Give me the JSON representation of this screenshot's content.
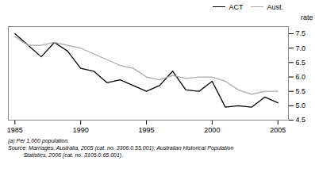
{
  "chart_data": {
    "type": "line",
    "x": [
      1985,
      1986,
      1987,
      1988,
      1989,
      1990,
      1991,
      1992,
      1993,
      1994,
      1995,
      1996,
      1997,
      1998,
      1999,
      2000,
      2001,
      2002,
      2003,
      2004,
      2005
    ],
    "series": [
      {
        "name": "ACT",
        "color": "#000000",
        "values": [
          7.5,
          7.1,
          6.7,
          7.2,
          6.9,
          6.3,
          6.2,
          5.8,
          5.9,
          5.7,
          5.5,
          5.7,
          6.2,
          5.55,
          5.5,
          5.85,
          4.95,
          5.0,
          4.95,
          5.3,
          5.1
        ]
      },
      {
        "name": "Aust.",
        "color": "#aaaaaa",
        "values": [
          7.4,
          7.1,
          7.1,
          7.2,
          7.1,
          7.0,
          6.8,
          6.6,
          6.4,
          6.3,
          6.0,
          5.9,
          6.05,
          5.95,
          6.0,
          6.0,
          5.85,
          5.55,
          5.4,
          5.5,
          5.5
        ]
      }
    ],
    "xlim": [
      1984.5,
      2005.8
    ],
    "xticks": [
      1985,
      1990,
      1995,
      2000,
      2005
    ],
    "ylim": [
      4.5,
      7.75
    ],
    "yticks": [
      4.5,
      {
        "value": 5.0,
        "label": "5.0"
      },
      5.5,
      {
        "value": 6.0,
        "label": "6.0"
      },
      6.5,
      {
        "value": 7.0,
        "label": "7.0"
      },
      7.5
    ],
    "ylabel": "rate",
    "legend": "upper right",
    "grid": false,
    "annotations": [
      "(a) Per 1,000 population.",
      "Source: Marriages, Australia, 2005 (cat. no. 3306.0.55.001); Australian Historical Population",
      "          Statistics, 2006 (cat. no. 3105.0.65.001)."
    ]
  }
}
